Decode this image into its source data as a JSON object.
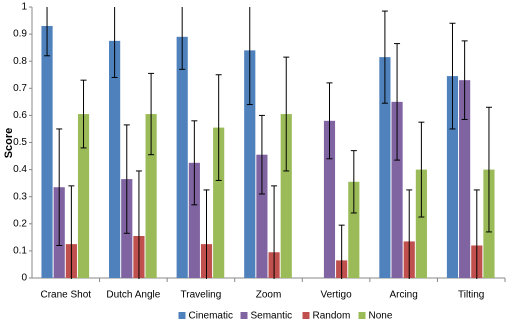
{
  "chart_data": {
    "type": "bar",
    "y_label": "Score",
    "categories": [
      "Crane Shot",
      "Dutch Angle",
      "Traveling",
      "Zoom",
      "Vertigo",
      "Arcing",
      "Tilting"
    ],
    "series": [
      {
        "name": "Cinematic",
        "color": "#4f81bd",
        "values": [
          0.93,
          0.875,
          0.89,
          0.84,
          0,
          0.815,
          0.745
        ],
        "errors": [
          0.11,
          0.135,
          0.12,
          0.2,
          0,
          0.17,
          0.195
        ]
      },
      {
        "name": "Semantic",
        "color": "#8064a2",
        "values": [
          0.335,
          0.365,
          0.425,
          0.455,
          0.58,
          0.65,
          0.73
        ],
        "errors": [
          0.215,
          0.2,
          0.155,
          0.145,
          0.14,
          0.215,
          0.145
        ]
      },
      {
        "name": "Random",
        "color": "#c0504d",
        "values": [
          0.125,
          0.155,
          0.125,
          0.095,
          0.065,
          0.135,
          0.12
        ],
        "errors": [
          0.215,
          0.24,
          0.2,
          0.245,
          0.13,
          0.19,
          0.205
        ]
      },
      {
        "name": "None",
        "color": "#9bbb59",
        "values": [
          0.605,
          0.605,
          0.555,
          0.605,
          0.355,
          0.4,
          0.4
        ],
        "errors": [
          0.125,
          0.15,
          0.195,
          0.21,
          0.115,
          0.175,
          0.23
        ]
      }
    ],
    "ylim": [
      0,
      1
    ],
    "yticks": [
      0,
      0.1,
      0.2,
      0.3,
      0.4,
      0.5,
      0.6,
      0.7,
      0.8,
      0.9,
      1
    ],
    "legend": "bottom"
  }
}
